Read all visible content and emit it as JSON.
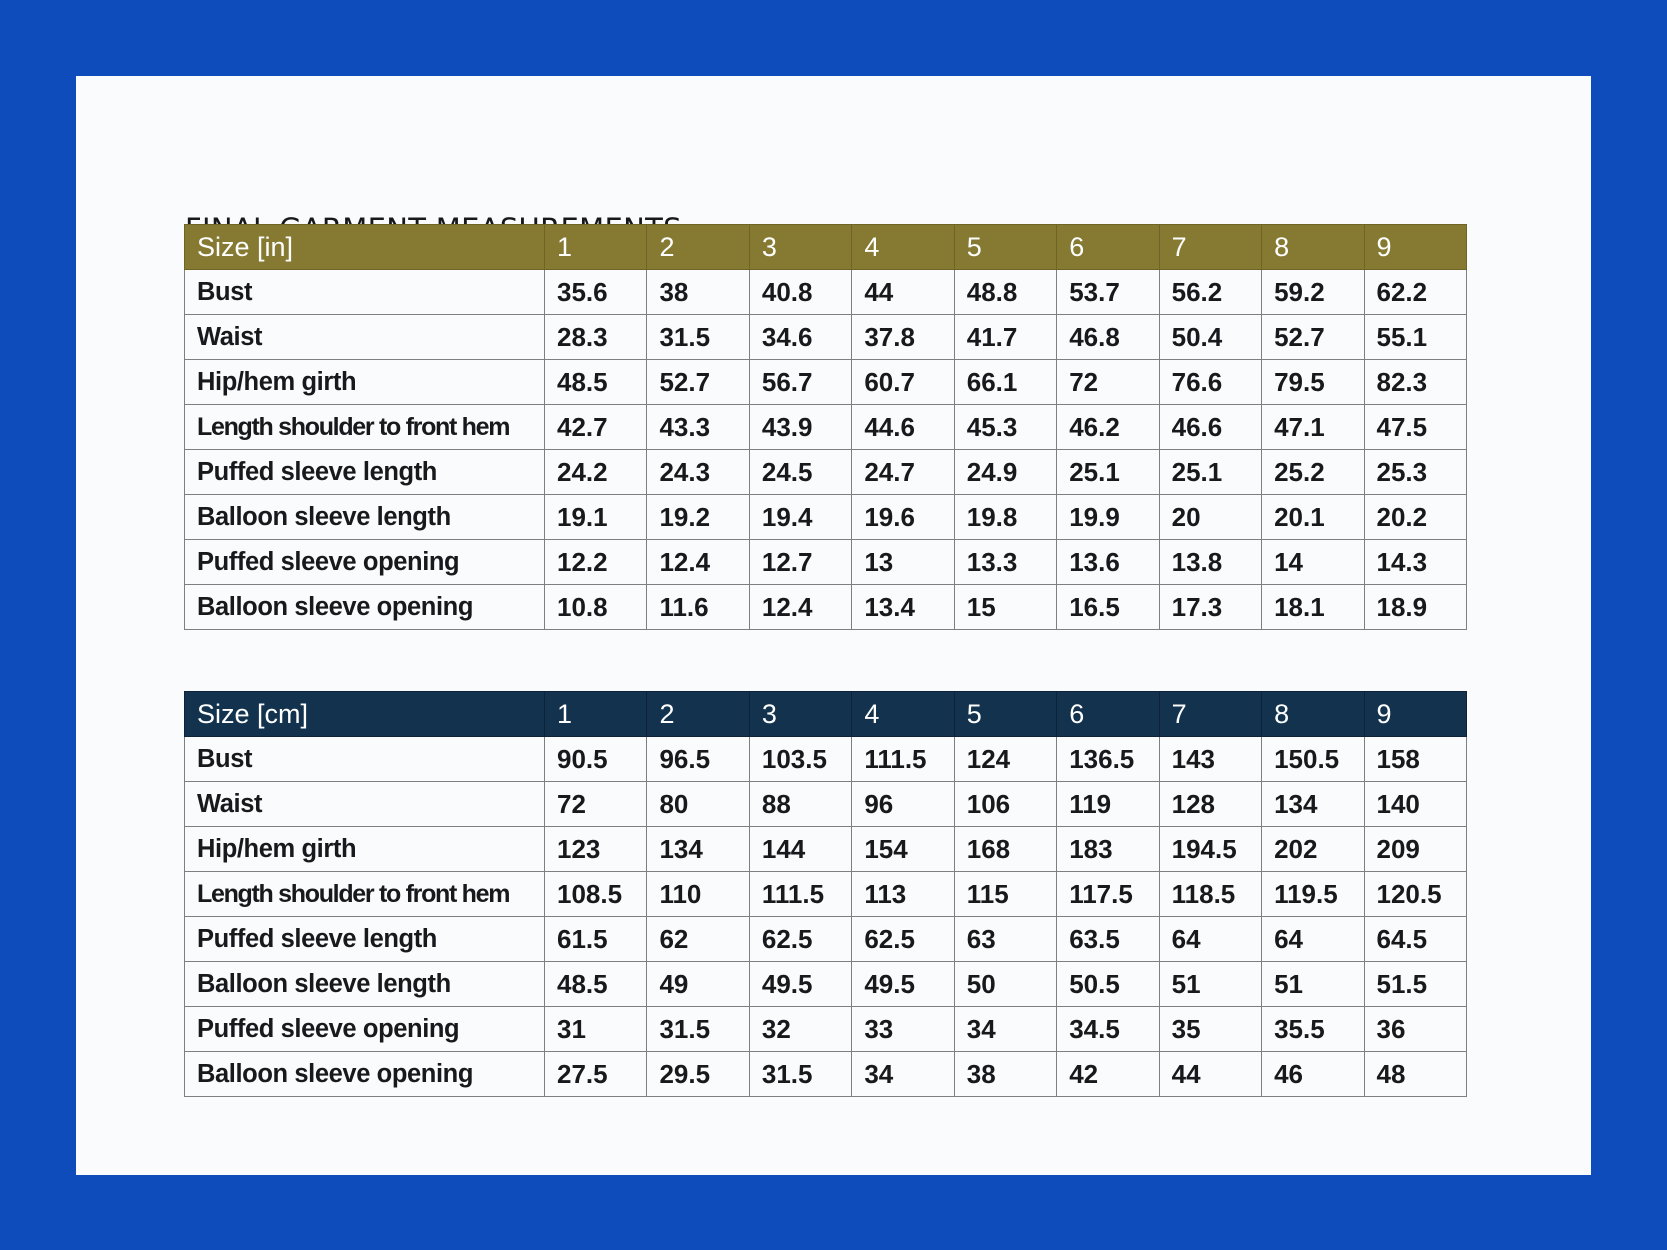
{
  "title": "FINAL GARMENT MEASUREMENTS",
  "colors": {
    "frame": "#0e4bbb",
    "inches_header": "#867931",
    "cm_header": "#12324e"
  },
  "tables": [
    {
      "header": [
        "Size [in]",
        "1",
        "2",
        "3",
        "4",
        "5",
        "6",
        "7",
        "8",
        "9"
      ],
      "rows": [
        [
          "Bust",
          "35.6",
          "38",
          "40.8",
          "44",
          "48.8",
          "53.7",
          "56.2",
          "59.2",
          "62.2"
        ],
        [
          "Waist",
          "28.3",
          "31.5",
          "34.6",
          "37.8",
          "41.7",
          "46.8",
          "50.4",
          "52.7",
          "55.1"
        ],
        [
          "Hip/hem girth",
          "48.5",
          "52.7",
          "56.7",
          "60.7",
          "66.1",
          "72",
          "76.6",
          "79.5",
          "82.3"
        ],
        [
          "Length shoulder to front hem",
          "42.7",
          "43.3",
          "43.9",
          "44.6",
          "45.3",
          "46.2",
          "46.6",
          "47.1",
          "47.5"
        ],
        [
          "Puffed sleeve length",
          "24.2",
          "24.3",
          "24.5",
          "24.7",
          "24.9",
          "25.1",
          "25.1",
          "25.2",
          "25.3"
        ],
        [
          "Balloon sleeve length",
          "19.1",
          "19.2",
          "19.4",
          "19.6",
          "19.8",
          "19.9",
          "20",
          "20.1",
          "20.2"
        ],
        [
          "Puffed sleeve opening",
          "12.2",
          "12.4",
          "12.7",
          "13",
          "13.3",
          "13.6",
          "13.8",
          "14",
          "14.3"
        ],
        [
          "Balloon sleeve opening",
          "10.8",
          "11.6",
          "12.4",
          "13.4",
          "15",
          "16.5",
          "17.3",
          "18.1",
          "18.9"
        ]
      ]
    },
    {
      "header": [
        "Size [cm]",
        "1",
        "2",
        "3",
        "4",
        "5",
        "6",
        "7",
        "8",
        "9"
      ],
      "rows": [
        [
          "Bust",
          "90.5",
          "96.5",
          "103.5",
          "111.5",
          "124",
          "136.5",
          "143",
          "150.5",
          "158"
        ],
        [
          "Waist",
          "72",
          "80",
          "88",
          "96",
          "106",
          "119",
          "128",
          "134",
          "140"
        ],
        [
          "Hip/hem girth",
          "123",
          "134",
          "144",
          "154",
          "168",
          "183",
          "194.5",
          "202",
          "209"
        ],
        [
          "Length shoulder to front hem",
          "108.5",
          "110",
          "111.5",
          "113",
          "115",
          "117.5",
          "118.5",
          "119.5",
          "120.5"
        ],
        [
          "Puffed sleeve length",
          "61.5",
          "62",
          "62.5",
          "62.5",
          "63",
          "63.5",
          "64",
          "64",
          "64.5"
        ],
        [
          "Balloon sleeve length",
          "48.5",
          "49",
          "49.5",
          "49.5",
          "50",
          "50.5",
          "51",
          "51",
          "51.5"
        ],
        [
          "Puffed sleeve opening",
          "31",
          "31.5",
          "32",
          "33",
          "34",
          "34.5",
          "35",
          "35.5",
          "36"
        ],
        [
          "Balloon sleeve opening",
          "27.5",
          "29.5",
          "31.5",
          "34",
          "38",
          "42",
          "44",
          "46",
          "48"
        ]
      ]
    }
  ]
}
